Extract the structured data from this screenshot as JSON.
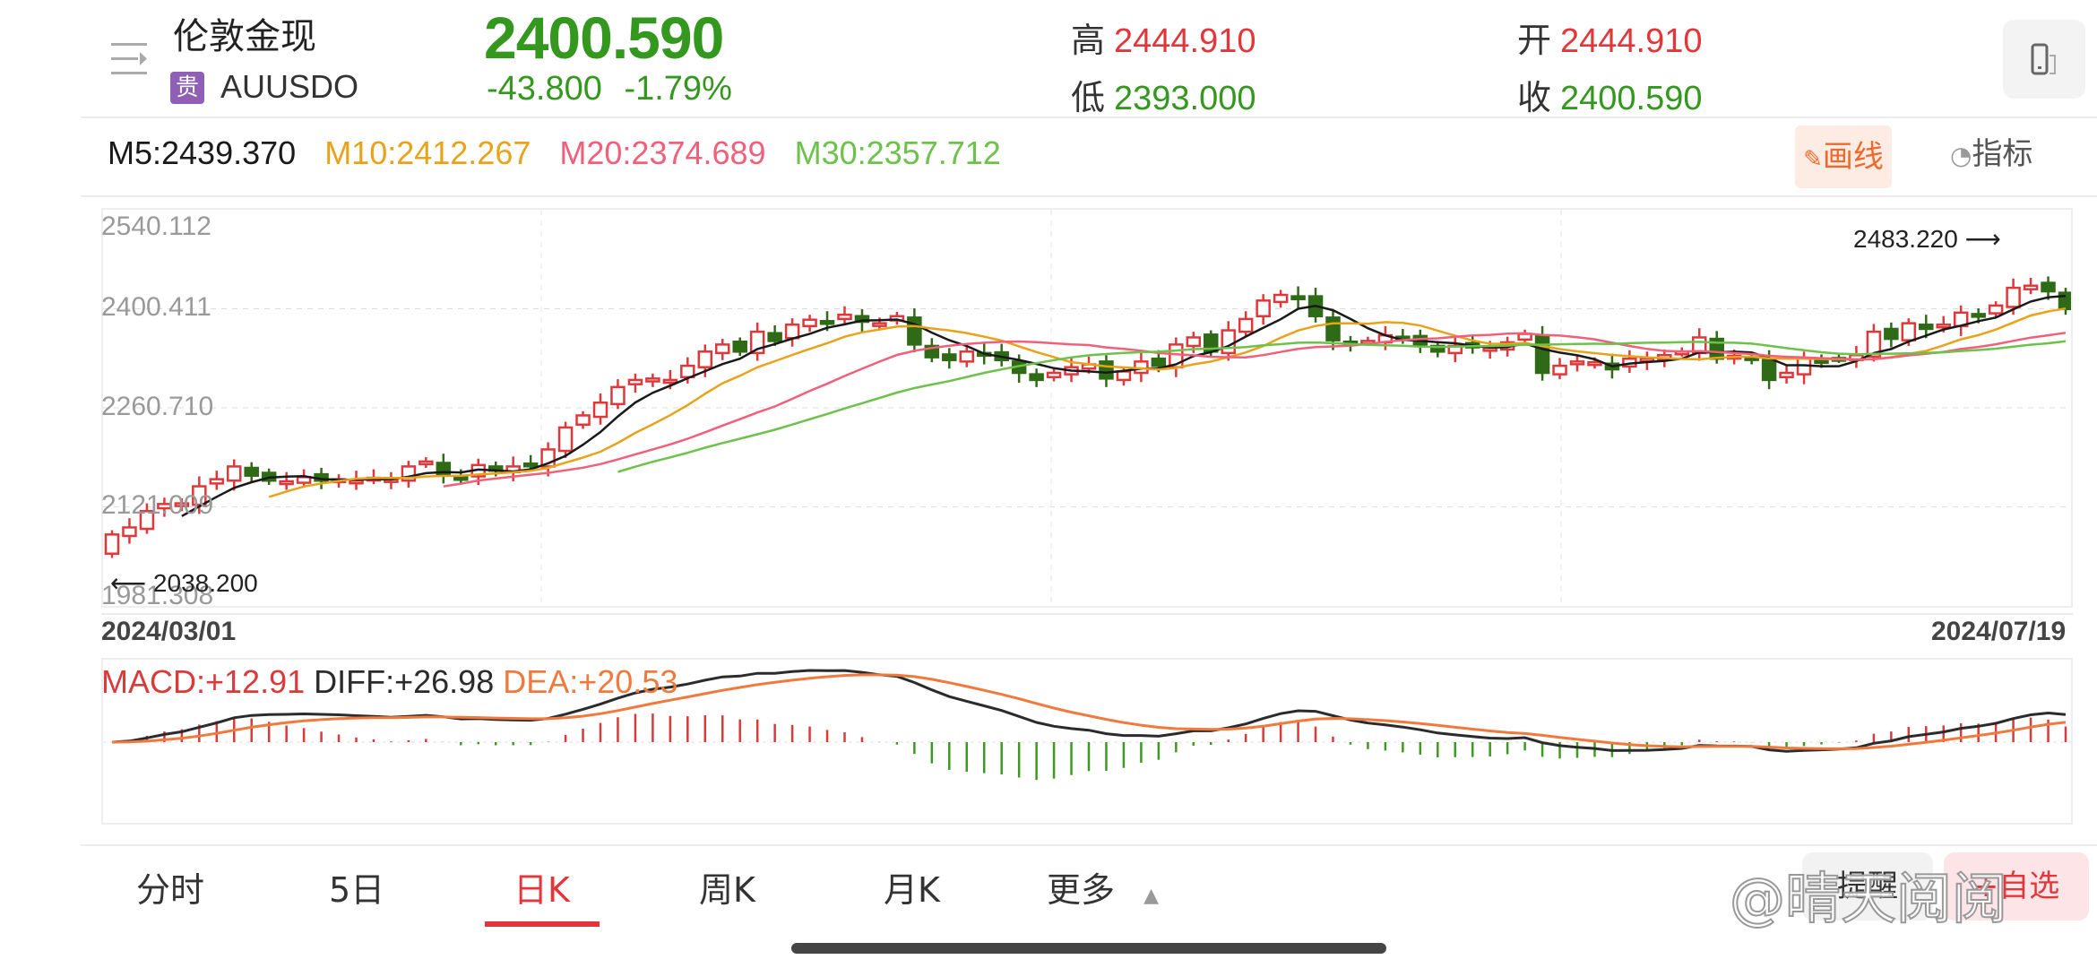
{
  "header": {
    "name": "伦敦金现",
    "badge": "贵",
    "code": "AUUSDO",
    "price": "2400.590",
    "change": "-43.800",
    "change_pct": "-1.79%",
    "high_label": "高",
    "high": "2444.910",
    "low_label": "低",
    "low": "2393.000",
    "open_label": "开",
    "open": "2444.910",
    "close_label": "收",
    "close": "2400.590"
  },
  "ma_legend": {
    "m5": "M5:2439.370",
    "m10": "M10:2412.267",
    "m20": "M20:2374.689",
    "m30": "M30:2357.712"
  },
  "toolbar": {
    "draw_label": "画线",
    "indicator_label": "指标"
  },
  "colors": {
    "up": "#e2373a",
    "down": "#2f6b16",
    "m5": "#1a1a1a",
    "m10": "#e9a31b",
    "m20": "#f0607a",
    "m30": "#6cc24a",
    "diff": "#2b2b2b",
    "dea": "#f07a3d",
    "macd_up": "#d93a3a",
    "macd_down": "#3c9a21"
  },
  "chart": {
    "y_labels": [
      "2540.112",
      "2400.411",
      "2260.710",
      "2121.009",
      "1981.308"
    ],
    "start_date": "2024/03/01",
    "end_date": "2024/07/19",
    "min_marker": "2038.200",
    "max_marker": "2483.220"
  },
  "macd_legend": {
    "macd": "MACD:+12.91",
    "diff": "DIFF:+26.98",
    "dea": "DEA:+20.53"
  },
  "tabs": [
    {
      "label": "分时",
      "active": false
    },
    {
      "label": "5日",
      "active": false
    },
    {
      "label": "日K",
      "active": true
    },
    {
      "label": "周K",
      "active": false
    },
    {
      "label": "月K",
      "active": false
    },
    {
      "label": "更多",
      "active": false
    }
  ],
  "bottom_buttons": {
    "left": "提醒",
    "right": "+自选"
  },
  "watermark": "@晴天阅阅",
  "chart_data": {
    "type": "candlestick",
    "title": "伦敦金现 AUUSDO 日K",
    "xlabel": "",
    "ylabel": "",
    "x_range": [
      "2024/03/01",
      "2024/07/19"
    ],
    "ylim": [
      1981.308,
      2540.112
    ],
    "y_ticks": [
      2540.112,
      2400.411,
      2260.71,
      2121.009,
      1981.308
    ],
    "grid": true,
    "annotations": [
      {
        "text": "2038.200",
        "type": "min"
      },
      {
        "text": "2483.220",
        "type": "max"
      }
    ],
    "legend": [
      "M5",
      "M10",
      "M20",
      "M30"
    ],
    "closes": [
      2082,
      2092,
      2115,
      2125,
      2126,
      2150,
      2160,
      2178,
      2165,
      2158,
      2157,
      2163,
      2158,
      2160,
      2158,
      2162,
      2160,
      2178,
      2185,
      2165,
      2160,
      2180,
      2172,
      2178,
      2180,
      2202,
      2233,
      2250,
      2268,
      2290,
      2300,
      2302,
      2300,
      2320,
      2340,
      2350,
      2340,
      2368,
      2355,
      2378,
      2385,
      2382,
      2392,
      2382,
      2380,
      2390,
      2350,
      2332,
      2328,
      2340,
      2335,
      2328,
      2310,
      2300,
      2310,
      2318,
      2322,
      2302,
      2312,
      2326,
      2320,
      2350,
      2360,
      2340,
      2370,
      2386,
      2412,
      2420,
      2414,
      2390,
      2356,
      2350,
      2355,
      2363,
      2358,
      2350,
      2340,
      2348,
      2346,
      2345,
      2353,
      2365,
      2310,
      2320,
      2326,
      2325,
      2315,
      2330,
      2330,
      2335,
      2340,
      2360,
      2330,
      2334,
      2330,
      2300,
      2310,
      2330,
      2327,
      2330,
      2335,
      2368,
      2358,
      2380,
      2372,
      2378,
      2395,
      2390,
      2405,
      2430,
      2433,
      2425,
      2400
    ],
    "ma_last": {
      "M5": 2439.37,
      "M10": 2412.267,
      "M20": 2374.689,
      "M30": 2357.712
    },
    "macd_last": {
      "MACD": 12.91,
      "DIFF": 26.98,
      "DEA": 20.53
    }
  }
}
